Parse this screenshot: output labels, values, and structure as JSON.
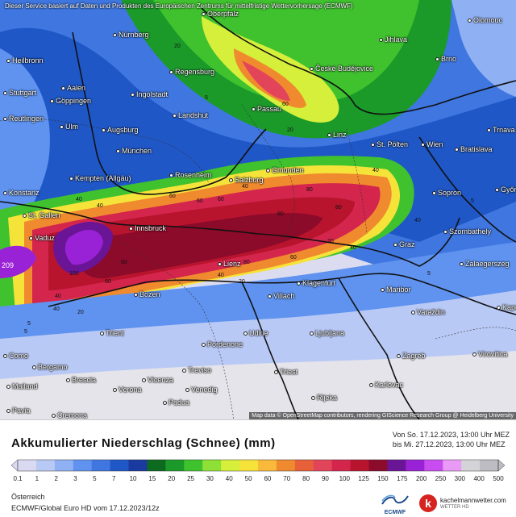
{
  "map": {
    "banner": "Dieser Service basiert auf Daten und Produkten des Europäischen Zentrums für mittelfristige Wettervorhersage (ECMWF)",
    "attribution": "Map data © OpenStreetMap contributors, rendering GIScience Research Group @ Heidelberg University",
    "cities": [
      "Oberpfalz",
      "Olomouc",
      "Nürnberg",
      "Jihlava",
      "Heilbronn",
      "Regensburg",
      "České Budějovice",
      "Brno",
      "Aalen",
      "Stuttgart",
      "Göppingen",
      "Ingolstadt",
      "Passau",
      "Reutlingen",
      "Landshut",
      "Ulm",
      "Augsburg",
      "Linz",
      "Trnava",
      "St. Pölten",
      "Wien",
      "Bratislava",
      "München",
      "Kempten (Allgäu)",
      "Gmunden",
      "Rosenheim",
      "Salzburg",
      "Konstanz",
      "Sopron",
      "Győr",
      "St. Gallen",
      "Vaduz",
      "Innsbruck",
      "Graz",
      "Szombathely",
      "Zalaegerszeg",
      "Lienz",
      "Bozen",
      "Klagenfurt",
      "Maribor",
      "Villach",
      "Trient",
      "Udine",
      "Ljubljana",
      "Varaždin",
      "Pordenone",
      "Zagreb",
      "Virovitica",
      "Bergamo",
      "Treviso",
      "Como",
      "Brescia",
      "Vicenza",
      "Triest",
      "Karlovac",
      "Mailand",
      "Verona",
      "Venedig",
      "Padua",
      "Rijeka",
      "Pavia",
      "Cremona",
      "Kapo"
    ],
    "contour_labels": [
      "20",
      "5",
      "20",
      "60",
      "40",
      "60",
      "40",
      "80",
      "40",
      "60",
      "80",
      "40",
      "5",
      "40",
      "60",
      "80",
      "100",
      "60",
      "40",
      "20",
      "5",
      "20",
      "40",
      "60",
      "40",
      "60",
      "80",
      "20",
      "40",
      "5",
      "5",
      "209"
    ]
  },
  "legend": {
    "title": "Akkumulierter Niederschlag (Schnee) (mm)",
    "period_from": "Von So. 17.12.2023, 13:00 Uhr MEZ",
    "period_to": "bis Mi. 27.12.2023, 13:00 Uhr MEZ",
    "ticks": [
      "0.1",
      "1",
      "2",
      "3",
      "5",
      "7",
      "10",
      "15",
      "20",
      "25",
      "30",
      "40",
      "50",
      "60",
      "70",
      "80",
      "90",
      "100",
      "125",
      "150",
      "175",
      "200",
      "250",
      "300",
      "400",
      "500"
    ],
    "colors": [
      "#d9d9f2",
      "#b9c9f5",
      "#8fb1f4",
      "#5f93ef",
      "#3f76e0",
      "#1f57c7",
      "#1b3aa0",
      "#0c6b1f",
      "#1b9a2a",
      "#3fc22e",
      "#8ee036",
      "#d5ef3a",
      "#f6e33a",
      "#f9b93a",
      "#f08a2e",
      "#e8603a",
      "#e2445a",
      "#d4254d",
      "#b8142e",
      "#8c0a2a",
      "#6a1596",
      "#9a22d6",
      "#c84cf0",
      "#e89af6",
      "#d4d4d8",
      "#bcbcc2"
    ],
    "region": "Österreich",
    "model": "ECMWF/Global Euro HD vom  17.12.2023/12z"
  },
  "logos": {
    "ecmwf": "ECMWF",
    "kachelmann_k": "k",
    "kachelmann_name": "kachelmannwetter.com",
    "kachelmann_sub": "WETTER HD"
  }
}
